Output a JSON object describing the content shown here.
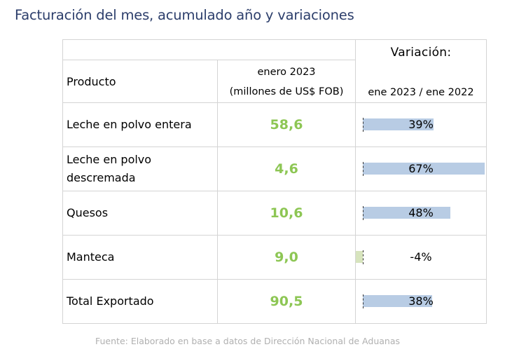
{
  "title": "Facturación del mes, acumulado año y variaciones",
  "table": {
    "header": {
      "product": "Producto",
      "period_line1": "enero 2023",
      "period_line2": "(millones de US$ FOB)",
      "variation_title": "Variación:",
      "variation_sub": "ene 2023 / ene 2022"
    },
    "rows": [
      {
        "product_line1": "Leche en polvo entera",
        "product_line2": "",
        "value": "58,6",
        "variation_label": "39%",
        "variation": 39
      },
      {
        "product_line1": "Leche en polvo",
        "product_line2": "descremada",
        "value": "4,6",
        "variation_label": "67%",
        "variation": 67
      },
      {
        "product_line1": "Quesos",
        "product_line2": "",
        "value": "10,6",
        "variation_label": "48%",
        "variation": 48
      },
      {
        "product_line1": "Manteca",
        "product_line2": "",
        "value": "9,0",
        "variation_label": "-4%",
        "variation": -4
      },
      {
        "product_line1": "Total Exportado",
        "product_line2": "",
        "value": "90,5",
        "variation_label": "38%",
        "variation": 38
      }
    ]
  },
  "colors": {
    "title": "#2c3e6b",
    "value": "#8dc654",
    "bar_positive": "#b8cce4",
    "bar_negative": "#d7e4bd",
    "source": "#b0b0b0"
  },
  "source": "Fuente: Elaborado en base a datos de Dirección Nacional de Aduanas"
}
